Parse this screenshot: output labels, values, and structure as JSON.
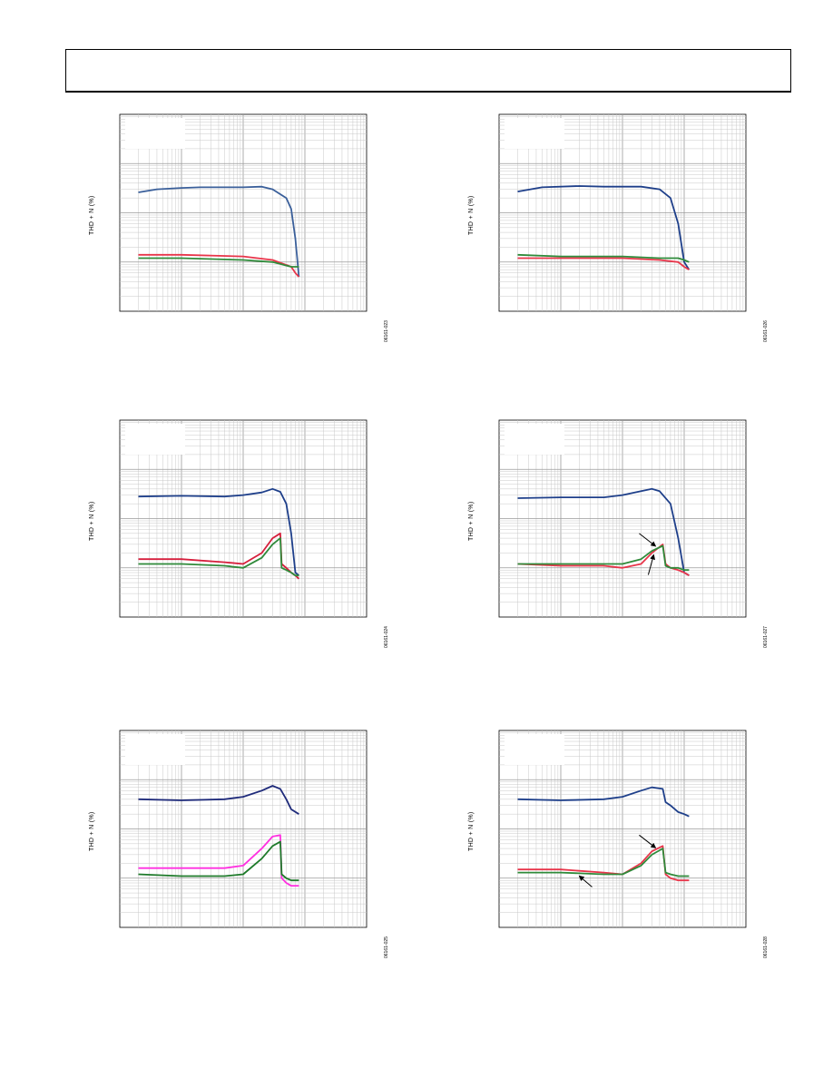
{
  "page": {
    "header": ""
  },
  "charts": [
    {
      "id": "p1",
      "ylabel": "THD + N (%)",
      "fig_id": "06161-023",
      "arrows": []
    },
    {
      "id": "p2",
      "ylabel": "THD + N (%)",
      "fig_id": "06161-026",
      "arrows": []
    },
    {
      "id": "p3",
      "ylabel": "THD + N (%)",
      "fig_id": "06161-024",
      "arrows": []
    },
    {
      "id": "p4",
      "ylabel": "THD + N (%)",
      "fig_id": "06161-027",
      "arrows": [
        "arrow-to-red-curve",
        "arrow-to-green-curve"
      ]
    },
    {
      "id": "p5",
      "ylabel": "THD + N (%)",
      "fig_id": "06161-025",
      "arrows": []
    },
    {
      "id": "p6",
      "ylabel": "THD + N (%)",
      "fig_id": "06161-028",
      "arrows": [
        "arrow-to-red-curve",
        "arrow-to-green-curve"
      ]
    }
  ],
  "chart_data": [
    {
      "type": "line",
      "xscale": "log",
      "yscale": "log",
      "grid": true,
      "xlim": [
        0.001,
        10
      ],
      "ylim": [
        0.001,
        10
      ],
      "series": [
        {
          "color": "#3a5f9a",
          "x": [
            0.002,
            0.004,
            0.01,
            0.02,
            0.05,
            0.1,
            0.2,
            0.3,
            0.5,
            0.6,
            0.7,
            0.8
          ],
          "y": [
            0.26,
            0.3,
            0.32,
            0.33,
            0.33,
            0.33,
            0.34,
            0.3,
            0.2,
            0.12,
            0.03,
            0.005
          ]
        },
        {
          "color": "#e8354a",
          "x": [
            0.002,
            0.01,
            0.1,
            0.3,
            0.6,
            0.7,
            0.8
          ],
          "y": [
            0.014,
            0.014,
            0.013,
            0.011,
            0.008,
            0.006,
            0.005
          ]
        },
        {
          "color": "#2f8a3a",
          "x": [
            0.002,
            0.01,
            0.1,
            0.3,
            0.6,
            0.7,
            0.8
          ],
          "y": [
            0.012,
            0.012,
            0.011,
            0.01,
            0.008,
            0.008,
            0.008
          ]
        }
      ]
    },
    {
      "type": "line",
      "xscale": "log",
      "yscale": "log",
      "grid": true,
      "xlim": [
        0.001,
        10
      ],
      "ylim": [
        0.001,
        10
      ],
      "series": [
        {
          "color": "#1e3f8a",
          "x": [
            0.002,
            0.005,
            0.02,
            0.05,
            0.1,
            0.2,
            0.4,
            0.6,
            0.8,
            1.0,
            1.2
          ],
          "y": [
            0.27,
            0.33,
            0.35,
            0.34,
            0.34,
            0.34,
            0.3,
            0.2,
            0.06,
            0.01,
            0.007
          ]
        },
        {
          "color": "#e8354a",
          "x": [
            0.002,
            0.01,
            0.1,
            0.4,
            0.8,
            1.0,
            1.2
          ],
          "y": [
            0.012,
            0.012,
            0.012,
            0.011,
            0.01,
            0.008,
            0.007
          ]
        },
        {
          "color": "#2f8a3a",
          "x": [
            0.002,
            0.01,
            0.1,
            0.4,
            0.8,
            1.0,
            1.2
          ],
          "y": [
            0.014,
            0.013,
            0.013,
            0.012,
            0.012,
            0.011,
            0.01
          ]
        }
      ]
    },
    {
      "type": "line",
      "xscale": "log",
      "yscale": "log",
      "grid": true,
      "xlim": [
        0.001,
        10
      ],
      "ylim": [
        0.001,
        10
      ],
      "series": [
        {
          "color": "#1e3f8a",
          "x": [
            0.002,
            0.01,
            0.05,
            0.1,
            0.2,
            0.3,
            0.4,
            0.5,
            0.6,
            0.7,
            0.8
          ],
          "y": [
            0.28,
            0.29,
            0.28,
            0.3,
            0.34,
            0.4,
            0.35,
            0.2,
            0.05,
            0.008,
            0.007
          ]
        },
        {
          "color": "#d61e3c",
          "x": [
            0.002,
            0.01,
            0.05,
            0.1,
            0.2,
            0.3,
            0.4,
            0.42,
            0.5,
            0.6,
            0.7,
            0.8
          ],
          "y": [
            0.015,
            0.015,
            0.013,
            0.012,
            0.02,
            0.04,
            0.05,
            0.012,
            0.01,
            0.008,
            0.007,
            0.006
          ]
        },
        {
          "color": "#2f8a3a",
          "x": [
            0.002,
            0.01,
            0.05,
            0.1,
            0.2,
            0.3,
            0.4,
            0.42,
            0.5,
            0.6,
            0.7,
            0.8
          ],
          "y": [
            0.012,
            0.012,
            0.011,
            0.01,
            0.016,
            0.03,
            0.04,
            0.01,
            0.009,
            0.008,
            0.007,
            0.007
          ]
        }
      ]
    },
    {
      "type": "line",
      "xscale": "log",
      "yscale": "log",
      "grid": true,
      "xlim": [
        0.001,
        10
      ],
      "ylim": [
        0.001,
        10
      ],
      "series": [
        {
          "color": "#1e3f8a",
          "x": [
            0.002,
            0.01,
            0.05,
            0.1,
            0.2,
            0.3,
            0.4,
            0.6,
            0.8,
            1.0,
            1.2
          ],
          "y": [
            0.26,
            0.27,
            0.27,
            0.3,
            0.36,
            0.4,
            0.36,
            0.2,
            0.04,
            0.008,
            0.007
          ]
        },
        {
          "color": "#e8354a",
          "x": [
            0.002,
            0.01,
            0.05,
            0.1,
            0.2,
            0.3,
            0.45,
            0.5,
            0.6,
            0.8,
            1.0,
            1.2
          ],
          "y": [
            0.012,
            0.011,
            0.011,
            0.01,
            0.012,
            0.02,
            0.03,
            0.012,
            0.01,
            0.009,
            0.008,
            0.007
          ]
        },
        {
          "color": "#2f8a3a",
          "x": [
            0.002,
            0.01,
            0.05,
            0.1,
            0.2,
            0.3,
            0.45,
            0.5,
            0.6,
            0.8,
            1.0,
            1.2
          ],
          "y": [
            0.012,
            0.012,
            0.012,
            0.012,
            0.015,
            0.022,
            0.028,
            0.011,
            0.01,
            0.01,
            0.009,
            0.009
          ]
        }
      ]
    },
    {
      "type": "line",
      "xscale": "log",
      "yscale": "log",
      "grid": true,
      "xlim": [
        0.001,
        10
      ],
      "ylim": [
        0.001,
        10
      ],
      "series": [
        {
          "color": "#1e2a7a",
          "x": [
            0.002,
            0.01,
            0.05,
            0.1,
            0.2,
            0.3,
            0.4,
            0.5,
            0.6,
            0.8
          ],
          "y": [
            0.4,
            0.38,
            0.4,
            0.45,
            0.6,
            0.75,
            0.65,
            0.4,
            0.25,
            0.2
          ]
        },
        {
          "color": "#ff30e0",
          "x": [
            0.002,
            0.01,
            0.05,
            0.1,
            0.2,
            0.3,
            0.4,
            0.42,
            0.5,
            0.6,
            0.8
          ],
          "y": [
            0.016,
            0.016,
            0.016,
            0.018,
            0.04,
            0.07,
            0.075,
            0.01,
            0.008,
            0.007,
            0.007
          ]
        },
        {
          "color": "#1e7a2a",
          "x": [
            0.002,
            0.01,
            0.05,
            0.1,
            0.2,
            0.3,
            0.4,
            0.42,
            0.5,
            0.6,
            0.8
          ],
          "y": [
            0.012,
            0.011,
            0.011,
            0.012,
            0.025,
            0.045,
            0.055,
            0.012,
            0.01,
            0.009,
            0.009
          ]
        }
      ]
    },
    {
      "type": "line",
      "xscale": "log",
      "yscale": "log",
      "grid": true,
      "xlim": [
        0.001,
        10
      ],
      "ylim": [
        0.001,
        10
      ],
      "series": [
        {
          "color": "#1e3f8a",
          "x": [
            0.002,
            0.01,
            0.05,
            0.1,
            0.2,
            0.3,
            0.45,
            0.5,
            0.6,
            0.8,
            1.0,
            1.2
          ],
          "y": [
            0.4,
            0.38,
            0.4,
            0.45,
            0.6,
            0.7,
            0.65,
            0.35,
            0.3,
            0.22,
            0.2,
            0.18
          ]
        },
        {
          "color": "#e8354a",
          "x": [
            0.002,
            0.01,
            0.05,
            0.1,
            0.2,
            0.3,
            0.45,
            0.5,
            0.6,
            0.8,
            1.0,
            1.2
          ],
          "y": [
            0.015,
            0.015,
            0.013,
            0.012,
            0.02,
            0.035,
            0.045,
            0.012,
            0.01,
            0.009,
            0.009,
            0.009
          ]
        },
        {
          "color": "#2f8a3a",
          "x": [
            0.002,
            0.01,
            0.05,
            0.1,
            0.2,
            0.3,
            0.45,
            0.5,
            0.6,
            0.8,
            1.0,
            1.2
          ],
          "y": [
            0.013,
            0.013,
            0.012,
            0.012,
            0.018,
            0.03,
            0.04,
            0.013,
            0.012,
            0.011,
            0.011,
            0.011
          ]
        }
      ]
    }
  ]
}
